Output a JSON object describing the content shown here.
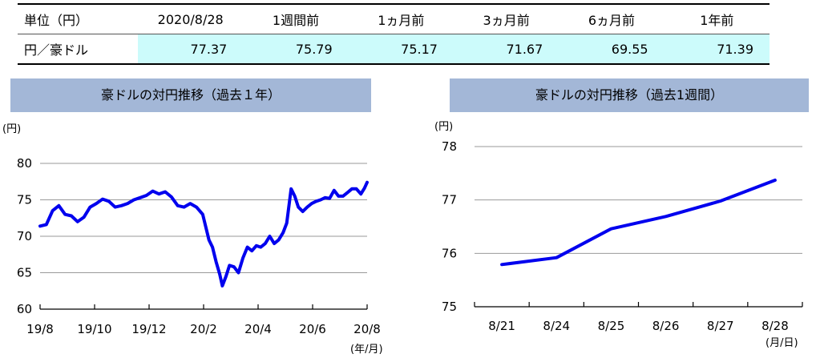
{
  "table": {
    "headers": [
      "単位（円）",
      "2020/8/28",
      "1週間前",
      "1ヵ月前",
      "3ヵ月前",
      "6ヵ月前",
      "1年前"
    ],
    "row_label": "円／豪ドル",
    "values": [
      "77.37",
      "75.79",
      "75.17",
      "71.67",
      "69.55",
      "71.39"
    ]
  },
  "chart_data": [
    {
      "type": "line",
      "title": "豪ドルの対円推移（過去１年）",
      "ylabel": "(円)",
      "xlabel": "(年/月)",
      "ylim": [
        60,
        80
      ],
      "yticks": [
        60,
        65,
        70,
        75,
        80
      ],
      "x_tick_labels": [
        "19/8",
        "19/10",
        "19/12",
        "20/2",
        "20/4",
        "20/6",
        "20/8"
      ],
      "grid": true,
      "color": "#0000ee",
      "series": [
        {
          "x": [
            "2019-08-28",
            "2019-09-04",
            "2019-09-11",
            "2019-09-18",
            "2019-09-25",
            "2019-10-02",
            "2019-10-09",
            "2019-10-16",
            "2019-10-23",
            "2019-10-30",
            "2019-11-06",
            "2019-11-13",
            "2019-11-20",
            "2019-11-27",
            "2019-12-04",
            "2019-12-11",
            "2019-12-18",
            "2019-12-25",
            "2020-01-01",
            "2020-01-08",
            "2020-01-15",
            "2020-01-22",
            "2020-01-29",
            "2020-02-05",
            "2020-02-12",
            "2020-02-19",
            "2020-02-26",
            "2020-03-04",
            "2020-03-08",
            "2020-03-12",
            "2020-03-16",
            "2020-03-19",
            "2020-03-23",
            "2020-03-27",
            "2020-04-01",
            "2020-04-06",
            "2020-04-11",
            "2020-04-16",
            "2020-04-21",
            "2020-04-26",
            "2020-05-01",
            "2020-05-06",
            "2020-05-11",
            "2020-05-16",
            "2020-05-21",
            "2020-05-26",
            "2020-05-30",
            "2020-06-04",
            "2020-06-08",
            "2020-06-12",
            "2020-06-17",
            "2020-06-22",
            "2020-06-27",
            "2020-07-02",
            "2020-07-07",
            "2020-07-12",
            "2020-07-17",
            "2020-07-22",
            "2020-07-27",
            "2020-08-01",
            "2020-08-06",
            "2020-08-11",
            "2020-08-16",
            "2020-08-21",
            "2020-08-25",
            "2020-08-28"
          ],
          "y": [
            71.4,
            71.6,
            73.5,
            74.2,
            73.0,
            72.8,
            72.0,
            72.6,
            74.0,
            74.5,
            75.1,
            74.8,
            74.0,
            74.2,
            74.5,
            75.0,
            75.3,
            75.6,
            76.2,
            75.8,
            76.1,
            75.4,
            74.2,
            74.0,
            74.5,
            74.0,
            73.0,
            69.5,
            68.5,
            66.5,
            64.8,
            63.2,
            64.5,
            66.0,
            65.8,
            65.0,
            67.0,
            68.5,
            68.0,
            68.7,
            68.5,
            69.0,
            70.0,
            69.0,
            69.5,
            70.5,
            71.8,
            76.5,
            75.5,
            74.0,
            73.4,
            74.0,
            74.5,
            74.8,
            75.0,
            75.3,
            75.2,
            76.3,
            75.5,
            75.5,
            76.0,
            76.5,
            76.5,
            75.8,
            76.6,
            77.4
          ]
        }
      ]
    },
    {
      "type": "line",
      "title": "豪ドルの対円推移（過去1週間）",
      "ylabel": "(円)",
      "xlabel": "(月/日)",
      "ylim": [
        75,
        78
      ],
      "yticks": [
        75,
        76,
        77,
        78
      ],
      "categories": [
        "8/21",
        "8/24",
        "8/25",
        "8/26",
        "8/27",
        "8/28"
      ],
      "grid": true,
      "color": "#0000ee",
      "series": [
        {
          "values": [
            75.79,
            75.92,
            76.46,
            76.69,
            76.98,
            77.37
          ]
        }
      ]
    }
  ]
}
